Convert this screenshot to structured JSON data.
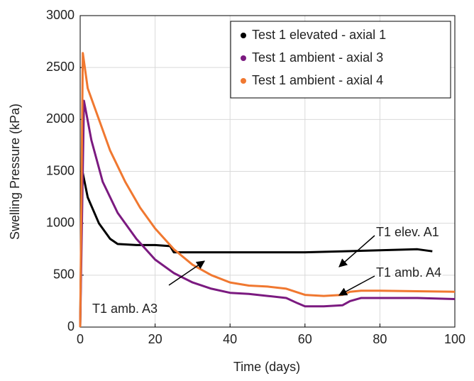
{
  "chart_data": {
    "type": "line",
    "xlabel": "Time (days)",
    "ylabel": "Swelling Pressure (kPa)",
    "xlim": [
      0,
      100
    ],
    "xticks": [
      0,
      20,
      40,
      60,
      80,
      100
    ],
    "ylim": [
      0,
      3000
    ],
    "yticks": [
      0,
      500,
      1000,
      1500,
      2000,
      2500,
      3000
    ],
    "grid": true,
    "legend": "upper right",
    "series": [
      {
        "name": "Test 1 elevated - axial 1",
        "color": "#000000",
        "x": [
          0,
          0.5,
          2,
          5,
          8,
          10,
          15,
          20,
          24,
          25,
          30,
          40,
          50,
          60,
          70,
          80,
          90,
          94
        ],
        "values": [
          0,
          1520,
          1250,
          1000,
          850,
          800,
          790,
          790,
          780,
          720,
          720,
          720,
          720,
          720,
          730,
          740,
          750,
          730
        ]
      },
      {
        "name": "Test 1 ambient - axial 3",
        "color": "#7b1a80",
        "x": [
          0,
          1,
          3,
          6,
          10,
          15,
          20,
          25,
          30,
          35,
          40,
          45,
          50,
          55,
          58,
          60,
          65,
          70,
          72,
          75,
          80,
          90,
          100
        ],
        "values": [
          0,
          2180,
          1800,
          1400,
          1100,
          850,
          650,
          520,
          430,
          370,
          330,
          320,
          300,
          280,
          230,
          200,
          200,
          210,
          250,
          280,
          280,
          280,
          270
        ]
      },
      {
        "name": "Test 1 ambient - axial 4",
        "color": "#f07830",
        "x": [
          0,
          0.7,
          2,
          5,
          8,
          12,
          16,
          20,
          25,
          30,
          35,
          40,
          45,
          50,
          55,
          60,
          65,
          70,
          72,
          75,
          80,
          90,
          100
        ],
        "values": [
          0,
          2640,
          2300,
          2000,
          1700,
          1400,
          1150,
          950,
          750,
          600,
          500,
          430,
          400,
          390,
          370,
          310,
          300,
          310,
          340,
          350,
          350,
          345,
          340
        ]
      }
    ],
    "annotations": [
      "T1 elev. A1",
      "T1 amb. A4",
      "T1 amb. A3"
    ]
  }
}
